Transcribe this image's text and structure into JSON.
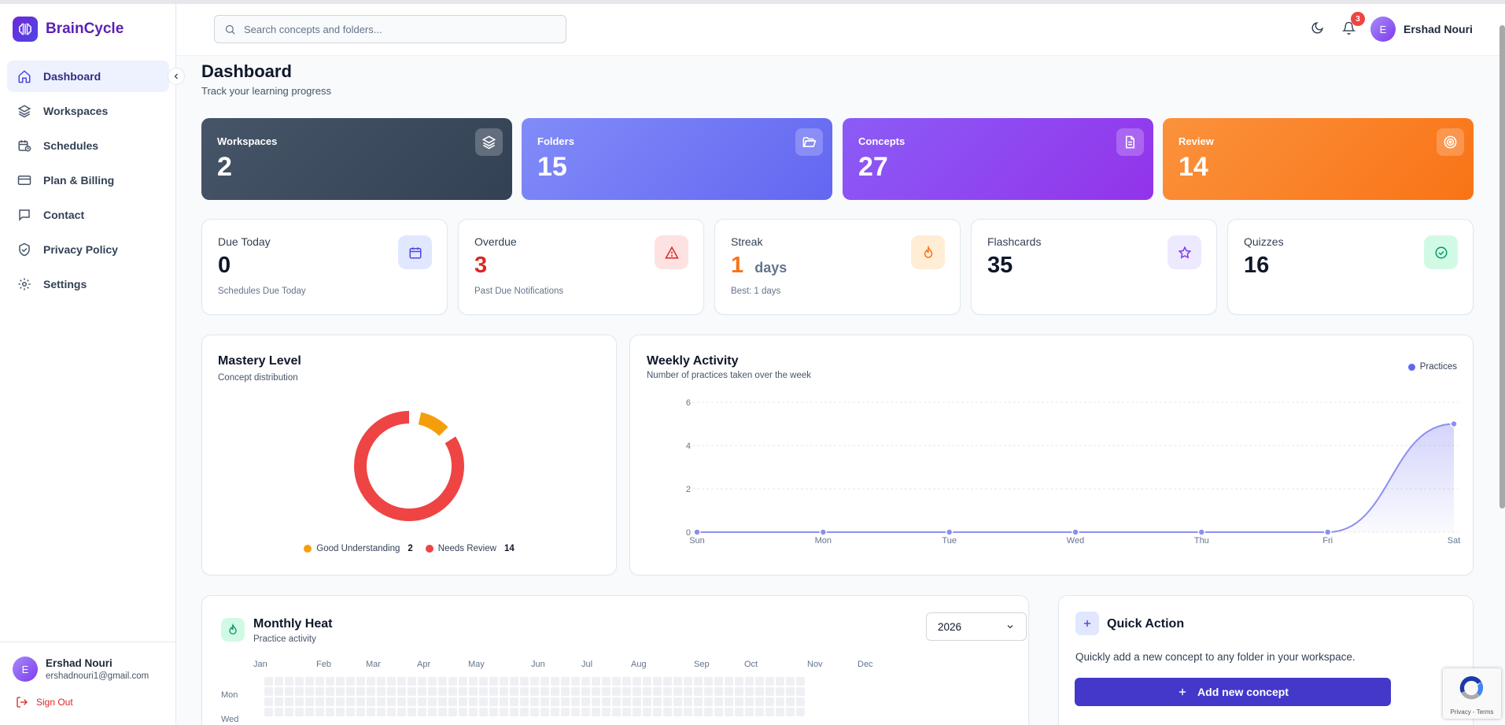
{
  "app": {
    "name": "BrainCycle"
  },
  "sidebar": {
    "items": [
      {
        "label": "Dashboard",
        "icon": "home-icon",
        "active": true
      },
      {
        "label": "Workspaces",
        "icon": "layers-icon"
      },
      {
        "label": "Schedules",
        "icon": "calendar-clock-icon"
      },
      {
        "label": "Plan & Billing",
        "icon": "credit-card-icon"
      },
      {
        "label": "Contact",
        "icon": "message-icon"
      },
      {
        "label": "Privacy Policy",
        "icon": "shield-check-icon"
      },
      {
        "label": "Settings",
        "icon": "gear-icon"
      }
    ],
    "user": {
      "initial": "E",
      "name": "Ershad Nouri",
      "email": "ershadnouri1@gmail.com"
    },
    "sign_out": "Sign Out"
  },
  "header": {
    "search_placeholder": "Search concepts and folders...",
    "notification_count": "3",
    "user": {
      "initial": "E",
      "name": "Ershad Nouri"
    }
  },
  "page": {
    "title": "Dashboard",
    "subtitle": "Track your learning progress"
  },
  "stats": [
    {
      "label": "Workspaces",
      "value": "2",
      "icon": "layers-icon",
      "color": "#334155"
    },
    {
      "label": "Folders",
      "value": "15",
      "icon": "folder-open-icon",
      "color": "#6366f1"
    },
    {
      "label": "Concepts",
      "value": "27",
      "icon": "document-icon",
      "color": "#9333ea"
    },
    {
      "label": "Review",
      "value": "14",
      "icon": "target-icon",
      "color": "#f97316"
    }
  ],
  "mini_stats": [
    {
      "label": "Due Today",
      "value": "0",
      "sub": "Schedules Due Today",
      "icon": "calendar-icon"
    },
    {
      "label": "Overdue",
      "value": "3",
      "sub": "Past Due Notifications",
      "icon": "warning-icon"
    },
    {
      "label": "Streak",
      "value": "1",
      "unit": "days",
      "sub": "Best: 1 days",
      "icon": "flame-icon"
    },
    {
      "label": "Flashcards",
      "value": "35",
      "icon": "star-icon"
    },
    {
      "label": "Quizzes",
      "value": "16",
      "icon": "check-circle-icon"
    }
  ],
  "mastery": {
    "title": "Mastery Level",
    "subtitle": "Concept distribution",
    "legend": [
      {
        "label": "Good Understanding",
        "value": "2",
        "color": "#f59e0b"
      },
      {
        "label": "Needs Review",
        "value": "14",
        "color": "#ef4444"
      }
    ]
  },
  "weekly": {
    "title": "Weekly Activity",
    "subtitle": "Number of practices taken over the week",
    "legend": "Practices"
  },
  "chart_data": [
    {
      "type": "pie",
      "title": "Mastery Level",
      "categories": [
        "Good Understanding",
        "Needs Review"
      ],
      "values": [
        2,
        14
      ],
      "colors": [
        "#f59e0b",
        "#ef4444"
      ]
    },
    {
      "type": "area",
      "title": "Weekly Activity",
      "categories": [
        "Sun",
        "Mon",
        "Tue",
        "Wed",
        "Thu",
        "Fri",
        "Sat"
      ],
      "series": [
        {
          "name": "Practices",
          "values": [
            0,
            0,
            0,
            0,
            0,
            0,
            5
          ]
        }
      ],
      "ylim": [
        0,
        6
      ],
      "yticks": [
        "0",
        "2",
        "4",
        "6"
      ],
      "color": "#6366f1"
    }
  ],
  "heatmap": {
    "title": "Monthly Heat",
    "subtitle": "Practice activity",
    "year": "2026",
    "months": [
      "Jan",
      "Feb",
      "Mar",
      "Apr",
      "May",
      "Jun",
      "Jul",
      "Aug",
      "Sep",
      "Oct",
      "Nov",
      "Dec"
    ],
    "days": [
      "Mon",
      "Wed"
    ]
  },
  "quick_action": {
    "title": "Quick Action",
    "description": "Quickly add a new concept to any folder in your workspace.",
    "button": "Add new concept"
  },
  "recaptcha": {
    "text": "Privacy - Terms"
  }
}
